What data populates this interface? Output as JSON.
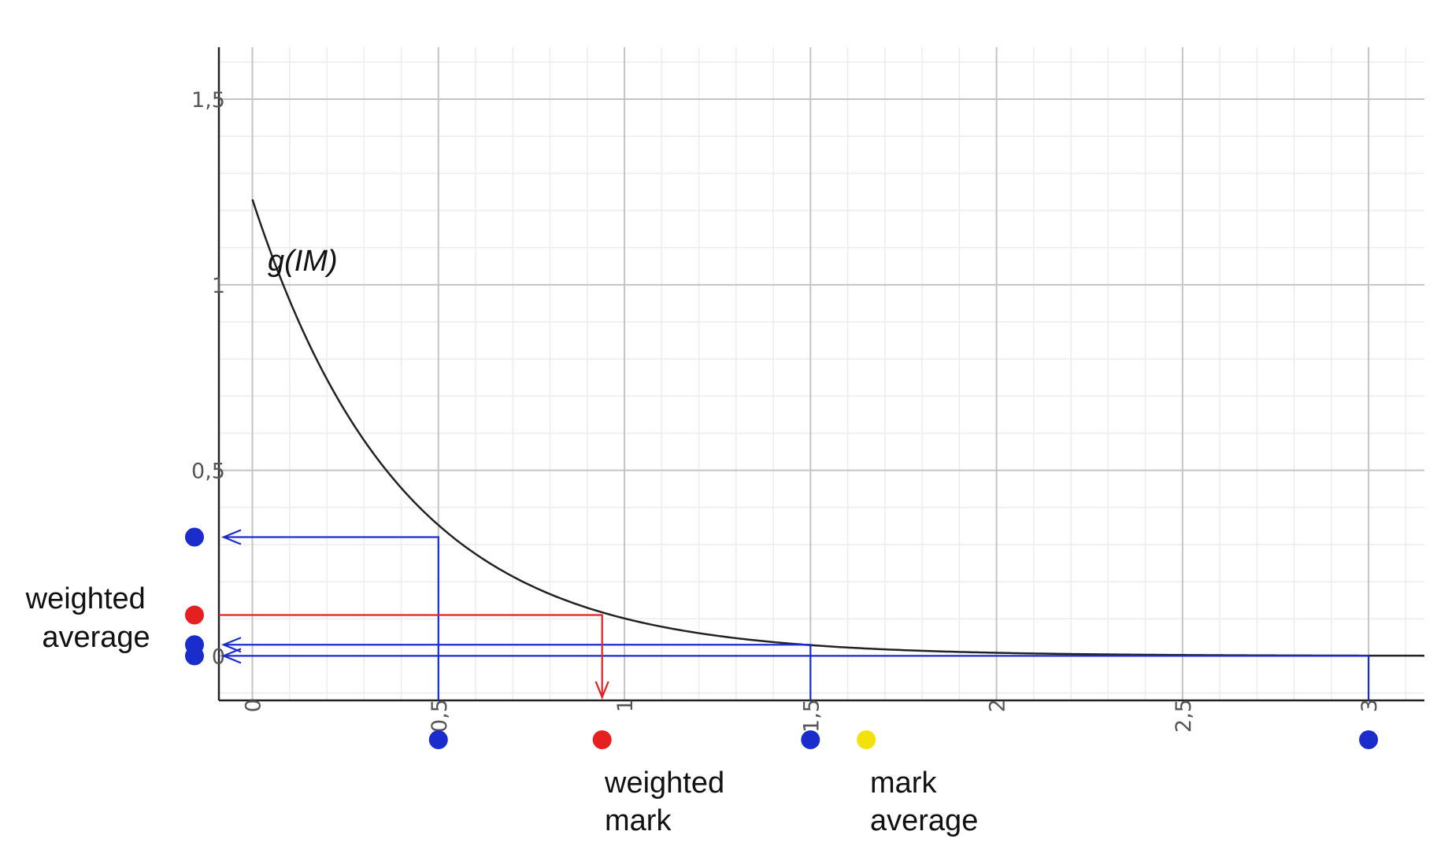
{
  "chart_data": {
    "type": "line",
    "curve": {
      "label": "g(IM)",
      "color": "#222222",
      "function": "1.23 * exp(-2.5 * x)"
    },
    "xlim": [
      -0.09,
      3.15
    ],
    "ylim": [
      -0.12,
      1.64
    ],
    "x_ticks": [
      {
        "value": 0,
        "label": "0"
      },
      {
        "value": 0.5,
        "label": "0,5"
      },
      {
        "value": 1,
        "label": "1"
      },
      {
        "value": 1.5,
        "label": "1,5"
      },
      {
        "value": 2,
        "label": "2"
      },
      {
        "value": 2.5,
        "label": "2,5"
      },
      {
        "value": 3,
        "label": "3"
      }
    ],
    "y_ticks": [
      {
        "value": 0,
        "label": "0"
      },
      {
        "value": 0.5,
        "label": "0,5"
      },
      {
        "value": 1,
        "label": "1"
      },
      {
        "value": 1.5,
        "label": "1,5"
      }
    ],
    "grid": true,
    "samples": [
      {
        "x": 0.5,
        "y": 0.32,
        "color": "#1a2dcc"
      },
      {
        "x": 1.5,
        "y": 0.03,
        "color": "#1a2dcc"
      },
      {
        "x": 3.0,
        "y": 0.0,
        "color": "#1a2dcc"
      }
    ],
    "weighted_mark": {
      "x": 0.94,
      "y": 0.11,
      "color": "#e62020"
    },
    "mark_average": {
      "x": 1.65,
      "color": "#f5e10a"
    },
    "annotations": {
      "weighted_average": [
        "weighted",
        "average"
      ],
      "weighted_mark": [
        "weighted",
        "mark"
      ],
      "mark_average": [
        "mark",
        "average"
      ]
    },
    "colors": {
      "blue": "#1a2dcc",
      "red": "#e62020",
      "yellow": "#f5e10a"
    }
  }
}
